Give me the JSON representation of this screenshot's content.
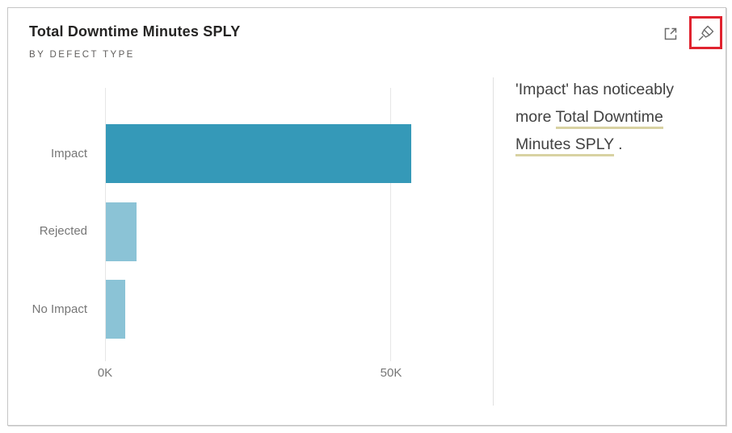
{
  "card": {
    "title": "Total Downtime Minutes SPLY",
    "subtitle": "BY DEFECT TYPE"
  },
  "toolbar": {
    "focus_mode_icon": "open-in-focus-mode",
    "pin_icon": "pin-visual",
    "pin_highlight_color": "#E0232F"
  },
  "chart_data": {
    "type": "bar",
    "orientation": "horizontal",
    "title": "Total Downtime Minutes SPLY",
    "subtitle": "BY DEFECT TYPE",
    "categories": [
      "Impact",
      "Rejected",
      "No Impact"
    ],
    "values": [
      53500,
      5400,
      3400
    ],
    "value_unit": "Total Downtime Minutes SPLY",
    "x_ticks": [
      {
        "label": "0K",
        "value": 0
      },
      {
        "label": "50K",
        "value": 50000
      }
    ],
    "xlim": [
      0,
      66000
    ],
    "grid": true,
    "legend": false,
    "bar_colors": [
      "#3599B8",
      "#8BC3D6",
      "#8BC3D6"
    ]
  },
  "insight": {
    "lines": [
      [
        {
          "text": "'Impact' has noticeably",
          "underline": false
        }
      ],
      [
        {
          "text": "more ",
          "underline": false
        },
        {
          "text": "Total Downtime",
          "underline": true
        }
      ],
      [
        {
          "text": "Minutes SPLY",
          "underline": true
        },
        {
          "text": " .",
          "underline": false
        }
      ]
    ],
    "underline_color": "#D8D2A2",
    "text_color": "#414141"
  },
  "colors": {
    "bar_primary": "#3599B8",
    "bar_secondary": "#8BC3D6",
    "gridline": "#E6E6E6",
    "divider": "#E0E0E0",
    "axis_text": "#777777",
    "title_text": "#252423",
    "subtitle_text": "#605E5C",
    "card_border": "#C5C5C5",
    "highlight_red": "#E0232F",
    "icon_gray": "#6B6B6B"
  }
}
